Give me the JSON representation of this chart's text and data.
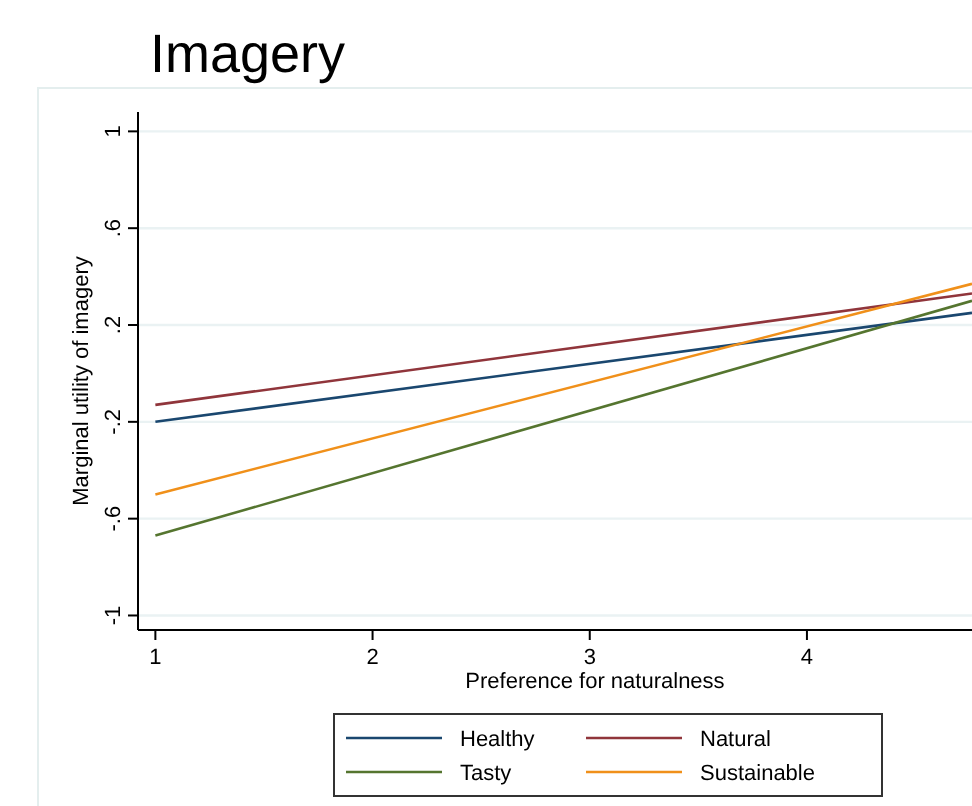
{
  "chart_data": {
    "type": "line",
    "title": "Imagery",
    "xlabel": "Preference for naturalness",
    "ylabel": "Marginal utility of imagery",
    "x": [
      1,
      4.76
    ],
    "series": [
      {
        "name": "Healthy",
        "color": "#1a476f",
        "values": [
          -0.2,
          0.25
        ]
      },
      {
        "name": "Natural",
        "color": "#90353b",
        "values": [
          -0.13,
          0.33
        ]
      },
      {
        "name": "Tasty",
        "color": "#55752f",
        "values": [
          -0.67,
          0.3
        ]
      },
      {
        "name": "Sustainable",
        "color": "#f0901a",
        "values": [
          -0.5,
          0.37
        ]
      }
    ],
    "xlim": [
      0.92,
      4.76
    ],
    "xticks": [
      1,
      2,
      3,
      4
    ],
    "ylim": [
      -1.06,
      1.08
    ],
    "yticks": [
      1,
      {
        "value": 0.6,
        "label": ".6"
      },
      {
        "value": 0.2,
        "label": ".2"
      },
      {
        "value": -0.2,
        "label": "-.2"
      },
      {
        "value": -0.6,
        "label": "-.6"
      },
      -1
    ],
    "grid": "y",
    "legend": "bottom",
    "marker": "none",
    "line_style": "solid"
  }
}
